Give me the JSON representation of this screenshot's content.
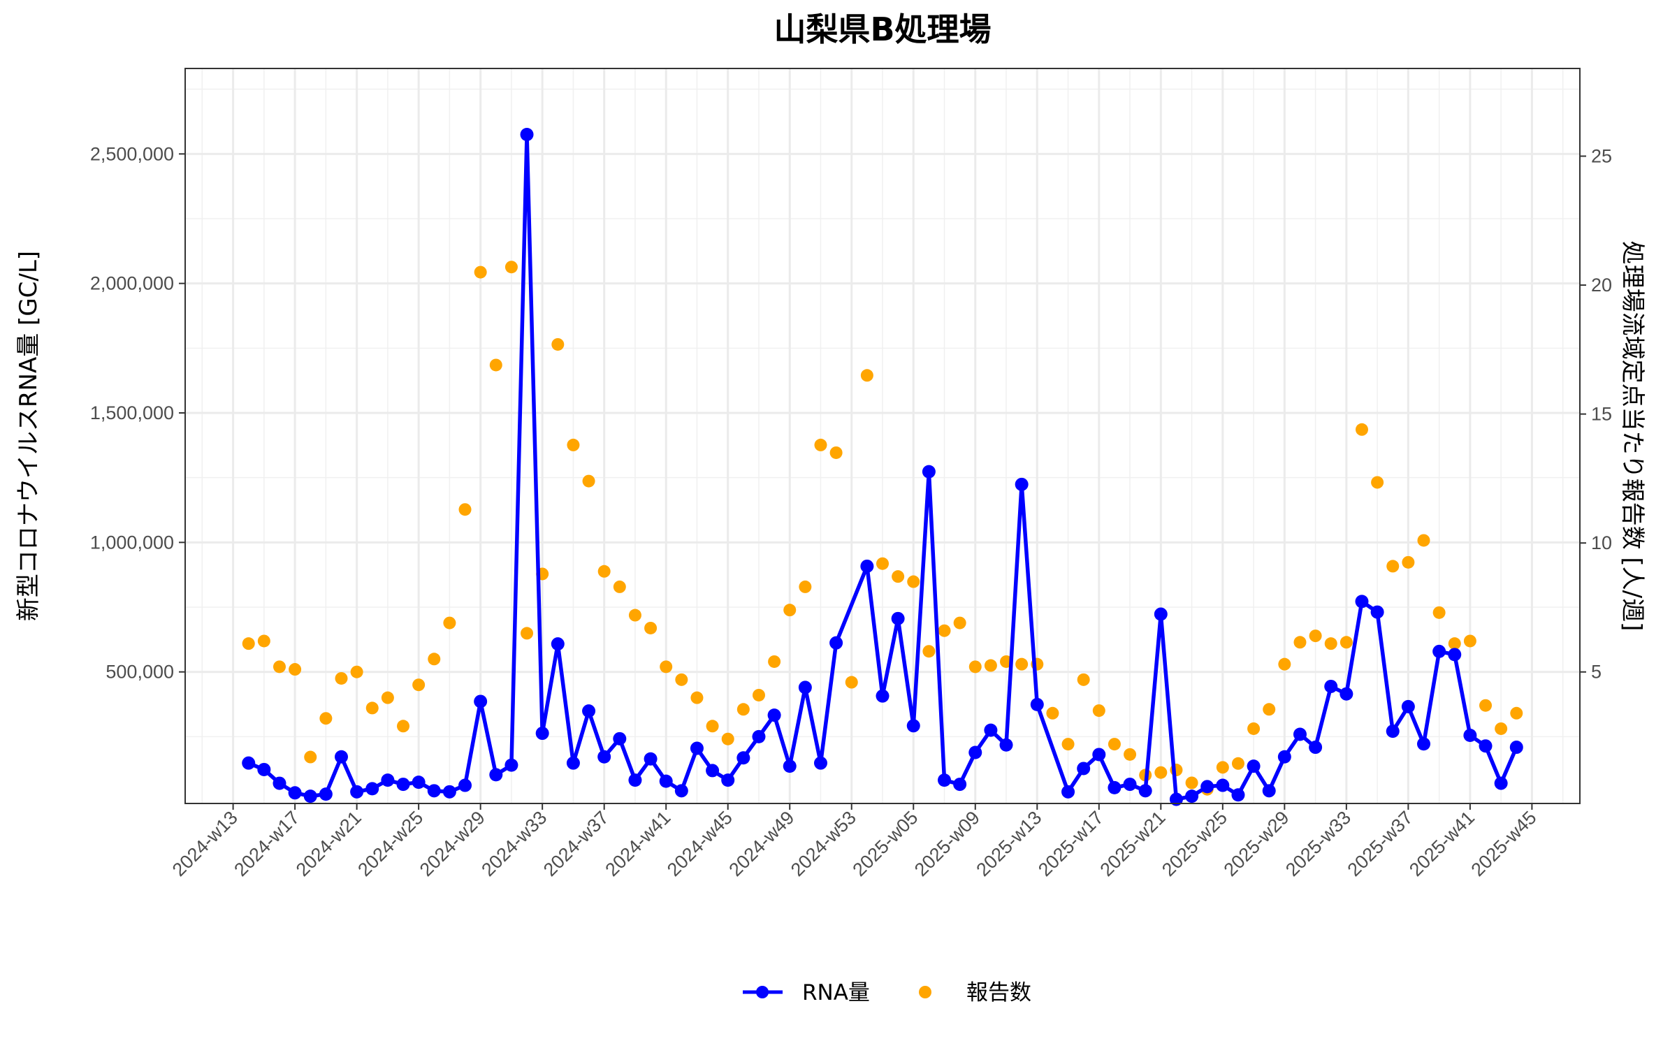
{
  "chart_data": {
    "type": "line",
    "title": "山梨県B処理場",
    "xlabel": "",
    "ylabel": "新型コロナウイルスRNA量 [GC/L]",
    "ylabel_right": "処理場流域定点当たり報告数 [人/週]",
    "ylim": [
      -8000,
      2830000
    ],
    "ylim_right": [
      -0.1,
      28.4
    ],
    "grid": true,
    "legend_position": "bottom",
    "x_ticks": [
      "2024-w13",
      "2024-w17",
      "2024-w21",
      "2024-w25",
      "2024-w29",
      "2024-w33",
      "2024-w37",
      "2024-w41",
      "2024-w45",
      "2024-w49",
      "2024-w53",
      "2025-w05",
      "2025-w09",
      "2025-w13",
      "2025-w17",
      "2025-w21",
      "2025-w25",
      "2025-w29",
      "2025-w33",
      "2025-w37",
      "2025-w41",
      "2025-w45"
    ],
    "y_ticks": [
      "500,000",
      "1,000,000",
      "1,500,000",
      "2,000,000",
      "2,500,000"
    ],
    "y_tick_values": [
      500000,
      1000000,
      1500000,
      2000000,
      2500000
    ],
    "y_ticks_right": [
      "5",
      "10",
      "15",
      "20",
      "25"
    ],
    "y_tick_values_right": [
      5,
      10,
      15,
      20,
      25
    ],
    "x": [
      "2024-w14",
      "2024-w15",
      "2024-w16",
      "2024-w17",
      "2024-w18",
      "2024-w19",
      "2024-w20",
      "2024-w21",
      "2024-w22",
      "2024-w23",
      "2024-w24",
      "2024-w25",
      "2024-w26",
      "2024-w27",
      "2024-w28",
      "2024-w29",
      "2024-w30",
      "2024-w31",
      "2024-w32",
      "2024-w33",
      "2024-w34",
      "2024-w35",
      "2024-w36",
      "2024-w37",
      "2024-w38",
      "2024-w39",
      "2024-w40",
      "2024-w41",
      "2024-w42",
      "2024-w43",
      "2024-w44",
      "2024-w45",
      "2024-w46",
      "2024-w47",
      "2024-w48",
      "2024-w49",
      "2024-w50",
      "2024-w51",
      "2024-w52",
      "2024-w53",
      "2025-w02",
      "2025-w03",
      "2025-w04",
      "2025-w05",
      "2025-w06",
      "2025-w07",
      "2025-w08",
      "2025-w09",
      "2025-w10",
      "2025-w11",
      "2025-w12",
      "2025-w13",
      "2025-w14",
      "2025-w15",
      "2025-w16",
      "2025-w17",
      "2025-w18",
      "2025-w19",
      "2025-w20",
      "2025-w21",
      "2025-w22",
      "2025-w23",
      "2025-w24",
      "2025-w25",
      "2025-w26",
      "2025-w27",
      "2025-w28",
      "2025-w29",
      "2025-w30",
      "2025-w31",
      "2025-w32",
      "2025-w33",
      "2025-w34",
      "2025-w35",
      "2025-w36",
      "2025-w37",
      "2025-w38",
      "2025-w39",
      "2025-w40",
      "2025-w41",
      "2025-w42",
      "2025-w43",
      "2025-w44"
    ],
    "series": [
      {
        "name": "RNA量",
        "axis": "left",
        "color": "#0000FF",
        "style": "line+points",
        "values": [
          148000,
          123000,
          70000,
          33000,
          20000,
          28000,
          172000,
          37000,
          49000,
          82000,
          66000,
          74000,
          41000,
          37000,
          62000,
          386000,
          103000,
          140000,
          2575000,
          263000,
          608000,
          148000,
          349000,
          172000,
          242000,
          82000,
          164000,
          78000,
          41000,
          205000,
          119000,
          82000,
          168000,
          250000,
          333000,
          136000,
          440000,
          148000,
          612000,
          null,
          908000,
          407000,
          706000,
          292000,
          1273000,
          82000,
          66000,
          189000,
          275000,
          218000,
          1224000,
          374000,
          null,
          37000,
          127000,
          181000,
          53000,
          66000,
          41000,
          723000,
          8000,
          20000,
          57000,
          62000,
          25000,
          136000,
          41000,
          172000,
          259000,
          209000,
          444000,
          415000,
          772000,
          731000,
          271000,
          366000,
          222000,
          579000,
          567000,
          255000,
          214000,
          70000,
          209000
        ]
      },
      {
        "name": "報告数",
        "axis": "right",
        "color": "#FFA500",
        "style": "points",
        "values": [
          6.1,
          6.2,
          5.2,
          5.1,
          1.7,
          3.2,
          4.75,
          5.0,
          3.6,
          4.0,
          2.9,
          4.5,
          5.5,
          6.9,
          11.3,
          20.5,
          16.9,
          20.7,
          6.5,
          8.8,
          17.7,
          13.8,
          12.4,
          8.9,
          8.3,
          7.2,
          6.7,
          5.2,
          4.7,
          4.0,
          2.9,
          2.4,
          3.55,
          4.1,
          5.4,
          7.4,
          8.3,
          13.8,
          13.5,
          4.6,
          16.5,
          9.2,
          8.7,
          8.5,
          5.8,
          6.6,
          6.9,
          5.2,
          5.25,
          5.4,
          5.3,
          5.3,
          3.4,
          2.2,
          4.7,
          3.5,
          2.2,
          1.8,
          1.0,
          1.1,
          1.2,
          0.7,
          0.45,
          1.3,
          1.45,
          2.8,
          3.55,
          5.3,
          6.15,
          6.4,
          6.1,
          6.15,
          14.4,
          12.35,
          9.1,
          9.25,
          10.1,
          7.3,
          6.1,
          6.2,
          3.7,
          2.8,
          3.4
        ]
      }
    ]
  }
}
